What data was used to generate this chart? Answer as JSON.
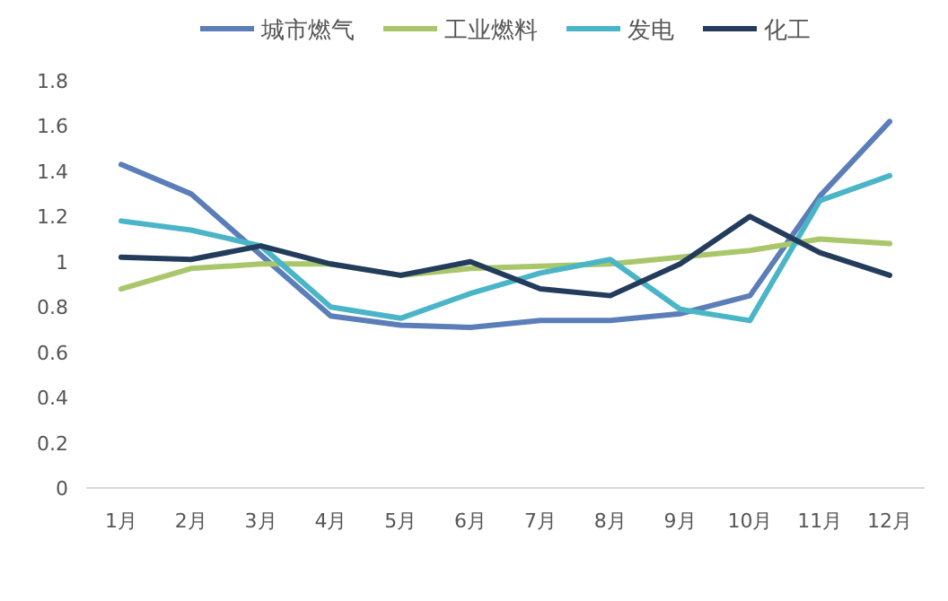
{
  "chart_data": {
    "type": "line",
    "categories": [
      "1月",
      "2月",
      "3月",
      "4月",
      "5月",
      "6月",
      "7月",
      "8月",
      "9月",
      "10月",
      "11月",
      "12月"
    ],
    "series": [
      {
        "name": "城市燃气",
        "color": "#5b7db8",
        "values": [
          1.43,
          1.3,
          1.03,
          0.76,
          0.72,
          0.71,
          0.74,
          0.74,
          0.77,
          0.85,
          1.29,
          1.62
        ]
      },
      {
        "name": "工业燃料",
        "color": "#a9c76a",
        "values": [
          0.88,
          0.97,
          0.99,
          0.99,
          0.94,
          0.97,
          0.98,
          0.99,
          1.02,
          1.05,
          1.1,
          1.08
        ]
      },
      {
        "name": "发电",
        "color": "#4bb5c8",
        "values": [
          1.18,
          1.14,
          1.07,
          0.8,
          0.75,
          0.86,
          0.95,
          1.01,
          0.79,
          0.74,
          1.27,
          1.38
        ]
      },
      {
        "name": "化工",
        "color": "#243c5c",
        "values": [
          1.02,
          1.01,
          1.07,
          0.99,
          0.94,
          1.0,
          0.88,
          0.85,
          0.99,
          1.2,
          1.04,
          0.94
        ]
      }
    ],
    "ylim": [
      0,
      1.8
    ],
    "yticks": [
      0,
      0.2,
      0.4,
      0.6,
      0.8,
      1,
      1.2,
      1.4,
      1.6,
      1.8
    ],
    "grid": false,
    "legend": "top",
    "marker": "none",
    "line_style": "solid"
  }
}
